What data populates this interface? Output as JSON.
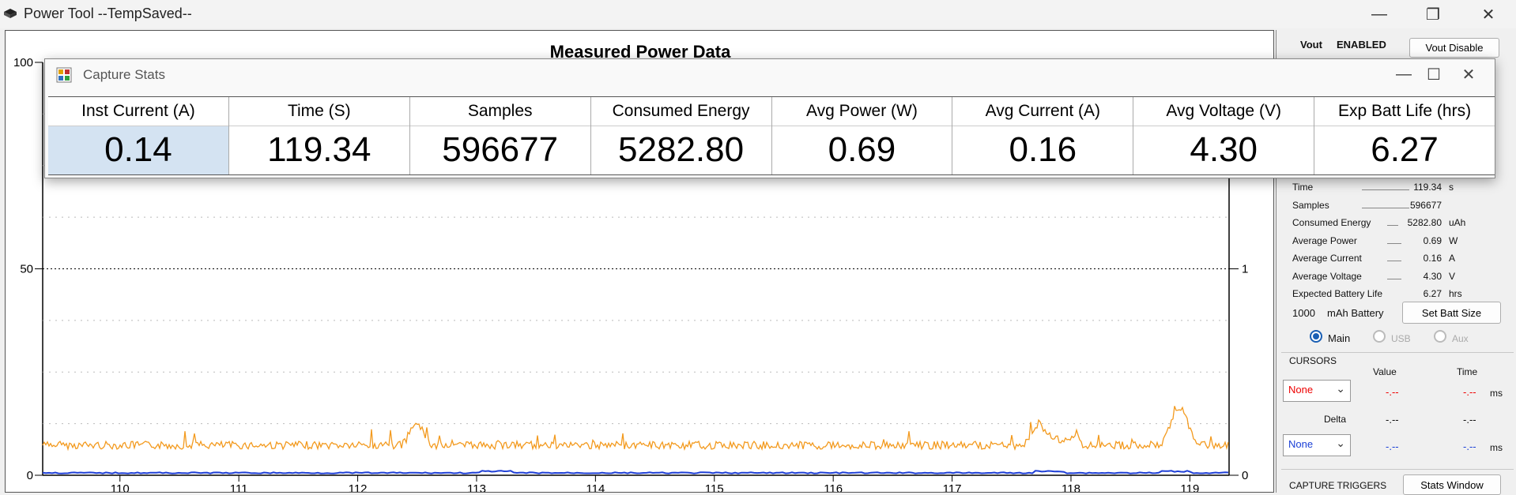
{
  "window": {
    "title": "Power Tool --TempSaved--",
    "icon": "device-icon"
  },
  "chart": {
    "title": "Measured Power Data",
    "left_axis_ticks": [
      "100",
      "50",
      "0"
    ],
    "right_axis_ticks": [
      "1",
      "0"
    ],
    "x_tick_labels": [
      "110",
      "111",
      "112",
      "113",
      "114",
      "115",
      "116",
      "117",
      "118",
      "119"
    ],
    "colors": {
      "current_trace": "#f39a1e",
      "voltage_trace": "#1f3fd6"
    }
  },
  "chart_data": {
    "type": "line",
    "title": "Measured Power Data",
    "xlabel": "",
    "ylabel": "",
    "x": [
      109.35,
      119.33
    ],
    "xlim": [
      109.35,
      119.33
    ],
    "ylim_left": [
      0,
      100
    ],
    "ylim_right": [
      0,
      2
    ],
    "grid": true,
    "series": [
      {
        "values": [
          0.14,
          0.14
        ]
      },
      {
        "values": [
          0.01,
          0.01
        ]
      }
    ]
  },
  "side_panel": {
    "vout_label": "Vout",
    "vout_state": "ENABLED",
    "vout_disable_button": "Vout Disable",
    "rows": [
      {
        "label": "Time",
        "value": "119.34",
        "unit": "s"
      },
      {
        "label": "Samples",
        "value": "596677",
        "unit": ""
      },
      {
        "label": "Consumed Energy",
        "value": "5282.80",
        "unit": "uAh"
      },
      {
        "label": "Average Power",
        "value": "0.69",
        "unit": "W"
      },
      {
        "label": "Average Current",
        "value": "0.16",
        "unit": "A"
      },
      {
        "label": "Average Voltage",
        "value": "4.30",
        "unit": "V"
      },
      {
        "label": "Expected Battery Life",
        "value": "6.27",
        "unit": "hrs"
      }
    ],
    "battery_size": "1000",
    "battery_label": "mAh Battery",
    "set_batt_button": "Set Batt Size",
    "radios": [
      {
        "label": "Main",
        "checked": true
      },
      {
        "label": "USB",
        "checked": false
      },
      {
        "label": "Aux",
        "checked": false
      }
    ],
    "cursors": {
      "heading": "CURSORS",
      "value_header": "Value",
      "time_header": "Time",
      "cursor1_select": "None",
      "cursor1_value": "-.--",
      "cursor1_time": "-.--",
      "time_unit": "ms",
      "delta_label": "Delta",
      "delta_value": "-.--",
      "delta_time": "-.--",
      "cursor2_select": "None",
      "cursor2_value": "-.--",
      "cursor2_time": "-.--",
      "time_unit2": "ms"
    },
    "capture_triggers_heading": "CAPTURE TRIGGERS",
    "stats_window_button": "Stats Window"
  },
  "capture_stats": {
    "title": "Capture Stats",
    "columns": [
      {
        "header": "Inst Current (A)",
        "value": "0.14"
      },
      {
        "header": "Time (S)",
        "value": "119.34"
      },
      {
        "header": "Samples",
        "value": "596677"
      },
      {
        "header": "Consumed Energy",
        "value": "5282.80"
      },
      {
        "header": "Avg Power (W)",
        "value": "0.69"
      },
      {
        "header": "Avg Current (A)",
        "value": "0.16"
      },
      {
        "header": "Avg Voltage (V)",
        "value": "4.30"
      },
      {
        "header": "Exp Batt Life (hrs)",
        "value": "6.27"
      }
    ]
  }
}
